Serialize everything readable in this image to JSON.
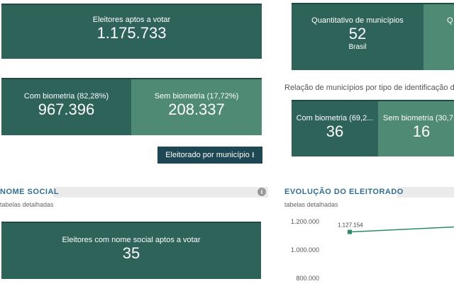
{
  "left": {
    "total": {
      "label": "Eleitores aptos a votar",
      "value": "1.175.733"
    },
    "biometria": [
      {
        "label": "Com biometria (82,28%)",
        "value": "967.396"
      },
      {
        "label": "Sem biometria (17,72%)",
        "value": "208.337"
      }
    ],
    "download_button": "Eleitorado por município",
    "nome_social": {
      "title": "NOME SOCIAL",
      "subtitle": "tabelas detalhadas",
      "label": "Eleitores com nome social aptos a votar",
      "value": "35"
    }
  },
  "right": {
    "municipios": {
      "label": "Quantitativo de municípios",
      "value": "52",
      "scope": "Brasil",
      "next_label": "Q"
    },
    "relacao_text": "Relação de municípios por tipo de identificação do",
    "tipos": [
      {
        "label": "Com biometria (69,2...",
        "value": "36"
      },
      {
        "label": "Sem biometria (30,7...",
        "value": "16"
      }
    ],
    "evolucao": {
      "title": "EVOLUÇÃO DO ELEITORADO",
      "subtitle": "tabelas detalhadas"
    }
  },
  "chart_data": {
    "type": "line",
    "yticks": [
      "1.200.000",
      "1.000.000",
      "800.000"
    ],
    "ylim": [
      800000,
      1200000
    ],
    "points": [
      {
        "value": 1127154,
        "label": "1.127.154"
      }
    ]
  },
  "colors": {
    "dark": "#2d6359",
    "light": "#4e8a74",
    "button": "#1d4752",
    "heading": "#2f6f93"
  }
}
